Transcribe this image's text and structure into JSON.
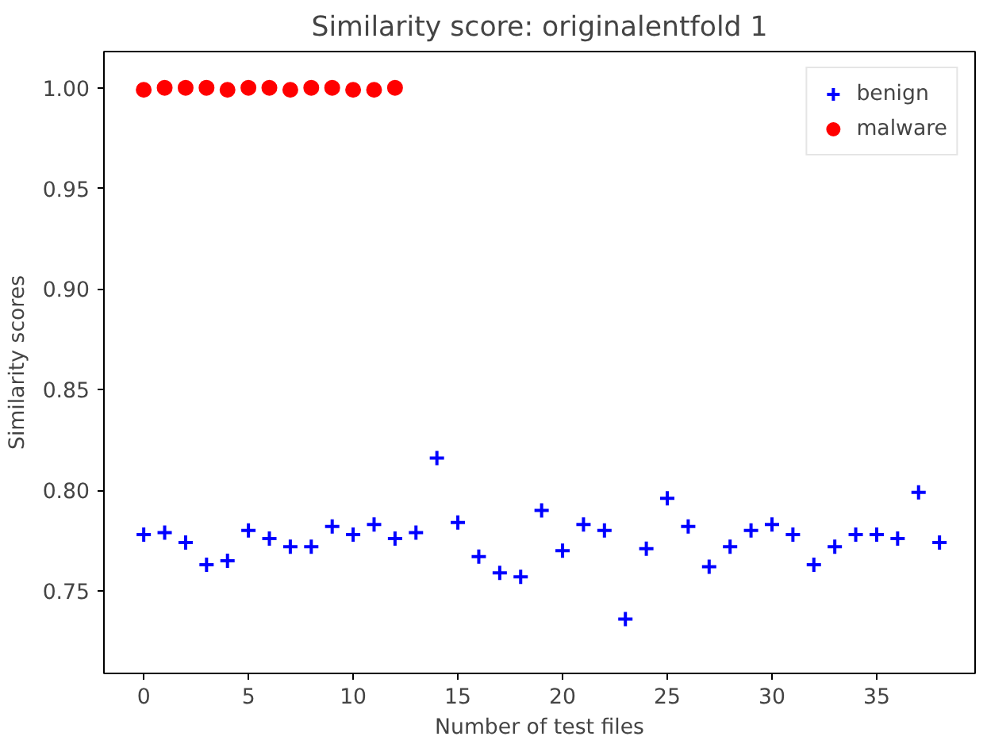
{
  "chart_data": {
    "type": "scatter",
    "title": "Similarity score: originalentfold 1",
    "xlabel": "Number of test files",
    "ylabel": "Similarity scores",
    "xlim": [
      -1.9,
      39.7
    ],
    "ylim": [
      0.709,
      1.018
    ],
    "xticks": [
      0,
      5,
      10,
      15,
      20,
      25,
      30,
      35
    ],
    "yticks": [
      {
        "value": 0.75,
        "label": "0.75"
      },
      {
        "value": 0.8,
        "label": "0.80"
      },
      {
        "value": 0.85,
        "label": "0.85"
      },
      {
        "value": 0.9,
        "label": "0.90"
      },
      {
        "value": 0.95,
        "label": "0.95"
      },
      {
        "value": 1.0,
        "label": "1.00"
      }
    ],
    "legend": "top right",
    "grid": false,
    "series": [
      {
        "name": "benign",
        "color": "#0000ff",
        "marker": "cross",
        "x": [
          0,
          1,
          2,
          3,
          4,
          5,
          6,
          7,
          8,
          9,
          10,
          11,
          12,
          13,
          14,
          15,
          16,
          17,
          18,
          19,
          20,
          21,
          22,
          23,
          24,
          25,
          26,
          27,
          28,
          29,
          30,
          31,
          32,
          33,
          34,
          35,
          36,
          37,
          38
        ],
        "values": [
          0.778,
          0.779,
          0.774,
          0.763,
          0.765,
          0.78,
          0.776,
          0.772,
          0.772,
          0.782,
          0.778,
          0.783,
          0.776,
          0.779,
          0.816,
          0.784,
          0.767,
          0.759,
          0.757,
          0.79,
          0.77,
          0.783,
          0.78,
          0.736,
          0.771,
          0.796,
          0.782,
          0.762,
          0.772,
          0.78,
          0.783,
          0.778,
          0.763,
          0.772,
          0.778,
          0.778,
          0.776,
          0.799,
          0.774
        ]
      },
      {
        "name": "malware",
        "color": "#ff0000",
        "marker": "circle",
        "x": [
          0,
          1,
          2,
          3,
          4,
          5,
          6,
          7,
          8,
          9,
          10,
          11,
          12
        ],
        "values": [
          0.999,
          1.0,
          1.0,
          1.0,
          0.999,
          1.0,
          1.0,
          0.999,
          1.0,
          1.0,
          0.999,
          0.999,
          1.0
        ]
      }
    ]
  }
}
